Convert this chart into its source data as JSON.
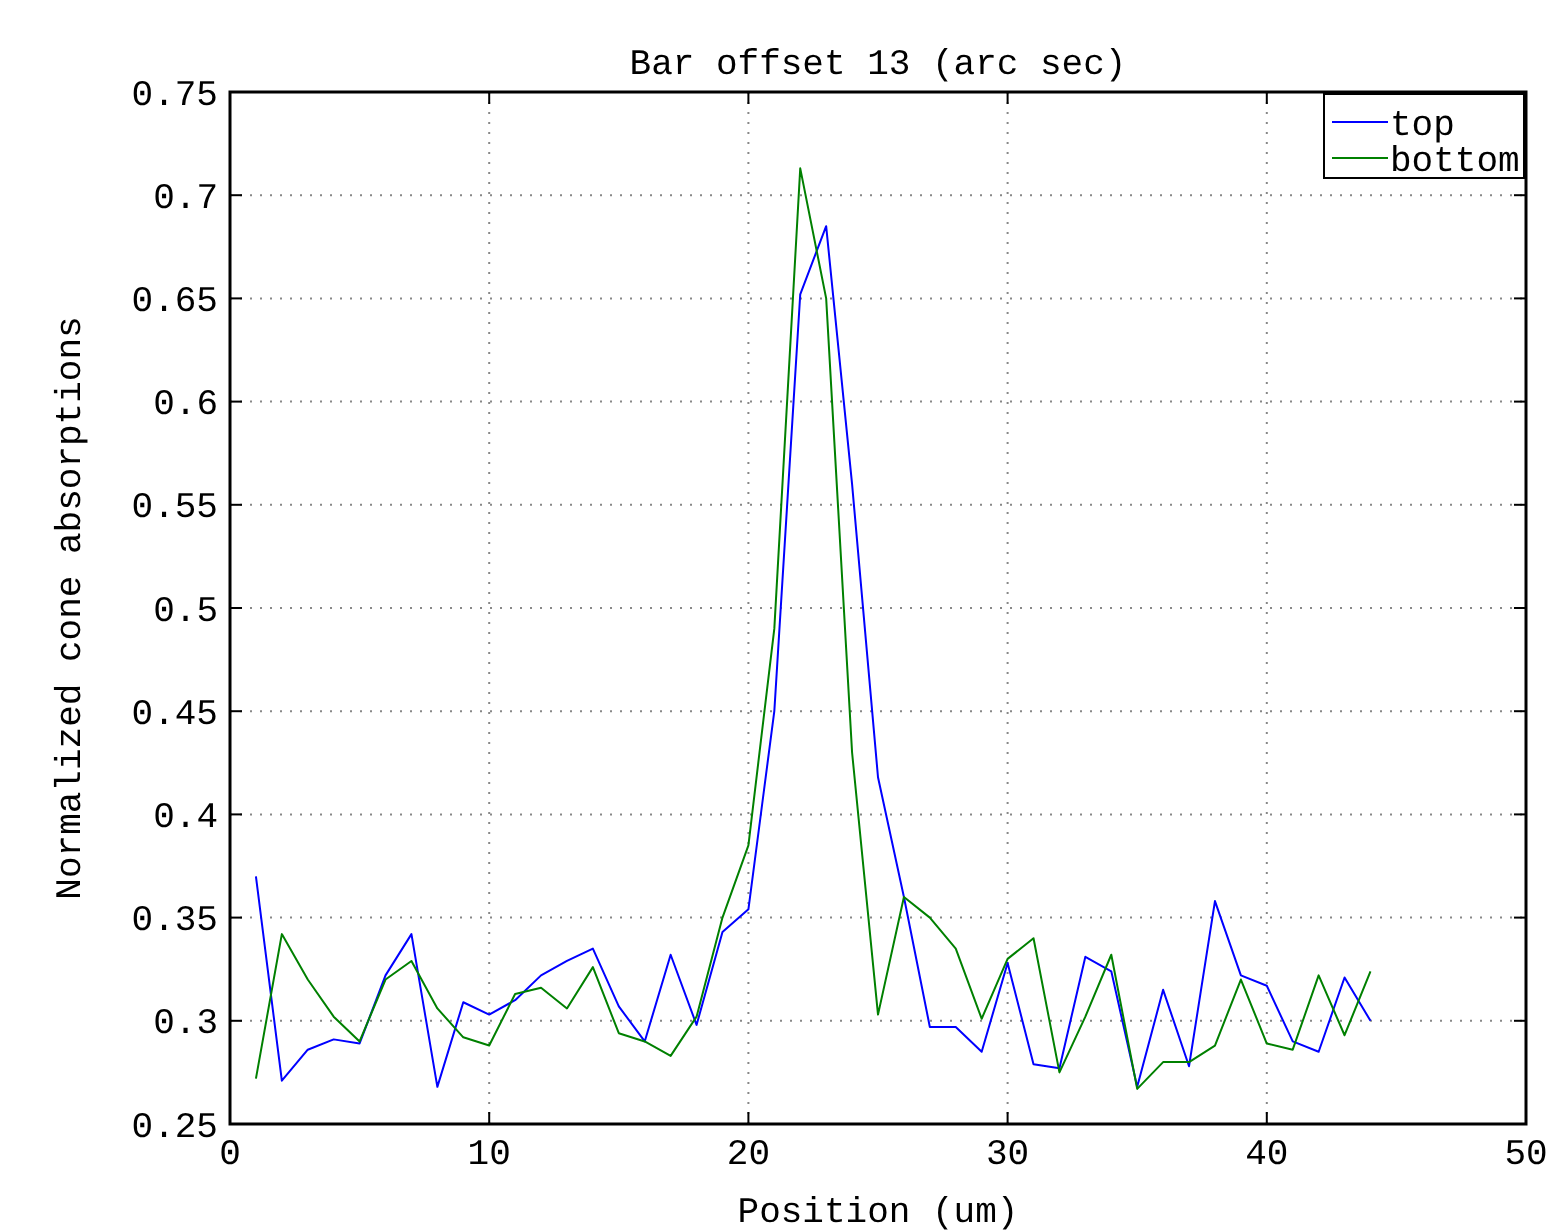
{
  "chart_data": {
    "type": "line",
    "title": "Bar offset 13 (arc sec)",
    "xlabel": "Position (um)",
    "ylabel": "Normalized cone absorptions",
    "x": [
      1,
      2,
      3,
      4,
      5,
      6,
      7,
      8,
      9,
      10,
      11,
      12,
      13,
      14,
      15,
      16,
      17,
      18,
      19,
      20,
      21,
      22,
      23,
      24,
      25,
      26,
      27,
      28,
      29,
      30,
      31,
      32,
      33,
      34,
      35,
      36,
      37,
      38,
      39,
      40,
      41,
      42,
      43,
      44
    ],
    "series": [
      {
        "name": "top",
        "color": "#0000ff",
        "values": [
          0.37,
          0.271,
          0.286,
          0.291,
          0.289,
          0.322,
          0.342,
          0.268,
          0.309,
          0.303,
          0.31,
          0.322,
          0.329,
          0.335,
          0.307,
          0.29,
          0.332,
          0.298,
          0.343,
          0.354,
          0.45,
          0.652,
          0.685,
          0.56,
          0.418,
          0.36,
          0.297,
          0.297,
          0.285,
          0.328,
          0.279,
          0.277,
          0.331,
          0.324,
          0.268,
          0.315,
          0.278,
          0.358,
          0.322,
          0.317,
          0.29,
          0.285,
          0.321,
          0.3
        ]
      },
      {
        "name": "bottom",
        "color": "#008000",
        "values": [
          0.272,
          0.342,
          0.32,
          0.302,
          0.29,
          0.32,
          0.329,
          0.306,
          0.292,
          0.288,
          0.313,
          0.316,
          0.306,
          0.326,
          0.294,
          0.29,
          0.283,
          0.302,
          0.35,
          0.385,
          0.49,
          0.713,
          0.65,
          0.43,
          0.303,
          0.36,
          0.35,
          0.335,
          0.301,
          0.33,
          0.34,
          0.275,
          0.302,
          0.332,
          0.267,
          0.28,
          0.28,
          0.288,
          0.32,
          0.289,
          0.286,
          0.322,
          0.293,
          0.324
        ]
      }
    ],
    "xlim": [
      0,
      50
    ],
    "xticks": [
      0,
      10,
      20,
      30,
      40,
      50
    ],
    "ylim": [
      0.25,
      0.75
    ],
    "yticks": [
      0.25,
      0.3,
      0.35,
      0.4,
      0.45,
      0.5,
      0.55,
      0.6,
      0.65,
      0.7,
      0.75
    ],
    "grid": true,
    "legend": "top right",
    "marker": "none",
    "line_style": "solid"
  }
}
